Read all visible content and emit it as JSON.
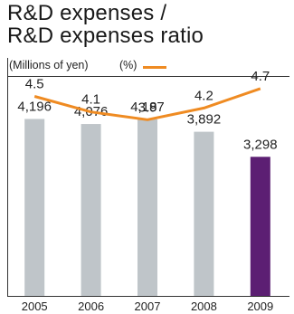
{
  "title_line1": "R&D expenses /",
  "title_line2": "R&D expenses ratio",
  "unit_left": "(Millions of yen)",
  "unit_right": "(%)",
  "chart_data": {
    "type": "bar",
    "categories": [
      "2005",
      "2006",
      "2007",
      "2008",
      "2009"
    ],
    "series": [
      {
        "values": [
          4196,
          4076,
          4187,
          3892,
          3298
        ]
      },
      {
        "type": "line",
        "values": [
          4.5,
          4.1,
          3.9,
          4.2,
          4.7
        ]
      }
    ],
    "bar_labels": [
      "4,196",
      "4,076",
      "4,187",
      "3,892",
      "3,298"
    ],
    "line_labels": [
      "4.5",
      "4.1",
      "3.9",
      "4.2",
      "4.7"
    ],
    "bar_ylim": [
      0,
      5300
    ],
    "line_ylim": [
      0,
      5.0
    ],
    "colors": {
      "bar": "#bfc5c9",
      "bar_highlight": "#5c1f73",
      "line": "#ef8b22"
    },
    "highlight_index": 4,
    "grid": false
  }
}
